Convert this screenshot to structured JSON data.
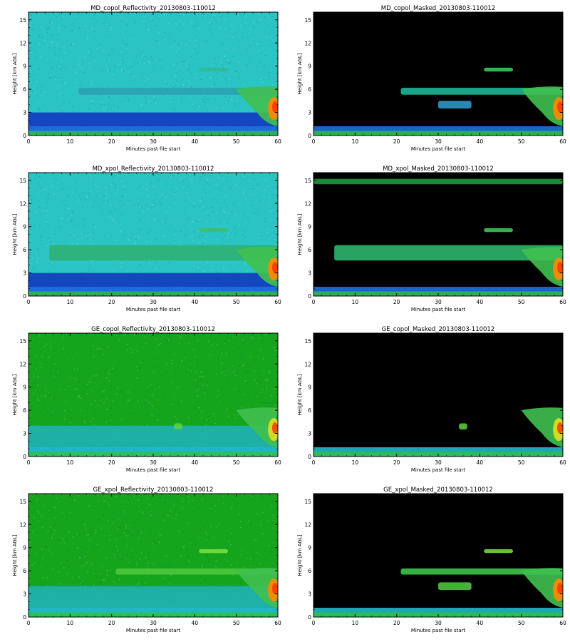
{
  "chart_data": [
    {
      "type": "heatmap",
      "title": "MD_copol_Reflectivity_20130803-110012",
      "xlabel": "Minutes past file start",
      "ylabel": "Height [km AGL]",
      "xlim": [
        0,
        60
      ],
      "ylim": [
        0,
        16
      ],
      "xticks": [
        "0",
        "10",
        "20",
        "30",
        "40",
        "50",
        "60"
      ],
      "yticks": [
        "0",
        "3",
        "6",
        "9",
        "12",
        "15"
      ],
      "masked": false,
      "background": "#2bc4c4",
      "lower": "#1e6fe0",
      "core": "#ff8a00",
      "bands": [
        {
          "x": [
            12,
            60
          ],
          "y": [
            5.3,
            6.2
          ],
          "color": "#2aa0b0"
        },
        {
          "x": [
            41,
            48
          ],
          "y": [
            8.3,
            8.8
          ],
          "color": "#30b890"
        },
        {
          "x": [
            0,
            60
          ],
          "y": [
            0,
            3
          ],
          "color": "#1030c0"
        }
      ]
    },
    {
      "type": "heatmap",
      "title": "MD_copol_Masked_20130803-110012",
      "xlabel": "Minutes past file start",
      "ylabel": "Height [km AGL]",
      "xlim": [
        0,
        60
      ],
      "ylim": [
        0,
        16
      ],
      "xticks": [
        "0",
        "10",
        "20",
        "30",
        "40",
        "50",
        "60"
      ],
      "yticks": [
        "0",
        "3",
        "6",
        "9",
        "12",
        "15"
      ],
      "masked": true,
      "background": "#000000",
      "lower": "#1e6fe0",
      "core": "#ff8a00",
      "bands": [
        {
          "x": [
            21,
            60
          ],
          "y": [
            5.3,
            6.2
          ],
          "color": "#20c0a0"
        },
        {
          "x": [
            41,
            48
          ],
          "y": [
            8.3,
            8.8
          ],
          "color": "#40d060"
        },
        {
          "x": [
            30,
            38
          ],
          "y": [
            3.5,
            4.5
          ],
          "color": "#30a0d0"
        }
      ]
    },
    {
      "type": "heatmap",
      "title": "MD_xpol_Reflectivity_20130803-110012",
      "xlabel": "Minutes past file start",
      "ylabel": "Height [km AGL]",
      "xlim": [
        0,
        60
      ],
      "ylim": [
        0,
        16
      ],
      "xticks": [
        "0",
        "10",
        "20",
        "30",
        "40",
        "50",
        "60"
      ],
      "yticks": [
        "0",
        "3",
        "6",
        "9",
        "12",
        "15"
      ],
      "masked": false,
      "background": "#2bc4c4",
      "lower": "#1e6fe0",
      "core": "#ff8a00",
      "bands": [
        {
          "x": [
            5,
            60
          ],
          "y": [
            4.6,
            6.6
          ],
          "color": "#30b070"
        },
        {
          "x": [
            41,
            48
          ],
          "y": [
            8.3,
            8.8
          ],
          "color": "#40c060"
        },
        {
          "x": [
            0,
            60
          ],
          "y": [
            0,
            3
          ],
          "color": "#1030c0"
        }
      ]
    },
    {
      "type": "heatmap",
      "title": "MD_xpol_Masked_20130803-110012",
      "xlabel": "Minutes past file start",
      "ylabel": "Height [km AGL]",
      "xlim": [
        0,
        60
      ],
      "ylim": [
        0,
        16
      ],
      "xticks": [
        "0",
        "10",
        "20",
        "30",
        "40",
        "50",
        "60"
      ],
      "yticks": [
        "0",
        "3",
        "6",
        "9",
        "12",
        "15"
      ],
      "masked": true,
      "background": "#000000",
      "lower": "#1e6fe0",
      "core": "#ff8a00",
      "bands": [
        {
          "x": [
            5,
            60
          ],
          "y": [
            4.6,
            6.6
          ],
          "color": "#30c070"
        },
        {
          "x": [
            41,
            48
          ],
          "y": [
            8.3,
            8.8
          ],
          "color": "#40d060"
        },
        {
          "x": [
            0,
            60
          ],
          "y": [
            14.5,
            15.2
          ],
          "color": "#20a040"
        }
      ]
    },
    {
      "type": "heatmap",
      "title": "GE_copol_Reflectivity_20130803-110012",
      "xlabel": "Minutes past file start",
      "ylabel": "Height [km AGL]",
      "xlim": [
        0,
        60
      ],
      "ylim": [
        0,
        16
      ],
      "xticks": [
        "0",
        "10",
        "20",
        "30",
        "40",
        "50",
        "60"
      ],
      "yticks": [
        "0",
        "3",
        "6",
        "9",
        "12",
        "15"
      ],
      "masked": false,
      "background": "#15a51d",
      "lower": "#20b8c8",
      "core": "#e0e020",
      "bands": [
        {
          "x": [
            0,
            60
          ],
          "y": [
            0,
            4
          ],
          "color": "#20b0c0"
        },
        {
          "x": [
            35,
            37
          ],
          "y": [
            3.5,
            4.3
          ],
          "color": "#60d040"
        }
      ]
    },
    {
      "type": "heatmap",
      "title": "GE_copol_Masked_20130803-110012",
      "xlabel": "Minutes past file start",
      "ylabel": "Height [km AGL]",
      "xlim": [
        0,
        60
      ],
      "ylim": [
        0,
        16
      ],
      "xticks": [
        "0",
        "10",
        "20",
        "30",
        "40",
        "50",
        "60"
      ],
      "yticks": [
        "0",
        "3",
        "6",
        "9",
        "12",
        "15"
      ],
      "masked": true,
      "background": "#000000",
      "lower": "#20b8c8",
      "core": "#e0e020",
      "bands": [
        {
          "x": [
            35,
            37
          ],
          "y": [
            3.5,
            4.3
          ],
          "color": "#60d040"
        }
      ]
    },
    {
      "type": "heatmap",
      "title": "GE_xpol_Reflectivity_20130803-110012",
      "xlabel": "Minutes past file start",
      "ylabel": "Height [km AGL]",
      "xlim": [
        0,
        60
      ],
      "ylim": [
        0,
        16
      ],
      "xticks": [
        "0",
        "10",
        "20",
        "30",
        "40",
        "50",
        "60"
      ],
      "yticks": [
        "0",
        "3",
        "6",
        "9",
        "12",
        "15"
      ],
      "masked": false,
      "background": "#15a51d",
      "lower": "#20b8c8",
      "core": "#ff8a00",
      "bands": [
        {
          "x": [
            0,
            60
          ],
          "y": [
            0,
            4
          ],
          "color": "#20b0c0"
        },
        {
          "x": [
            21,
            60
          ],
          "y": [
            5.5,
            6.3
          ],
          "color": "#50c840"
        },
        {
          "x": [
            41,
            48
          ],
          "y": [
            8.3,
            8.8
          ],
          "color": "#80e040"
        }
      ]
    },
    {
      "type": "heatmap",
      "title": "GE_xpol_Masked_20130803-110012",
      "xlabel": "Minutes past file start",
      "ylabel": "Height [km AGL]",
      "xlim": [
        0,
        60
      ],
      "ylim": [
        0,
        16
      ],
      "xticks": [
        "0",
        "10",
        "20",
        "30",
        "40",
        "50",
        "60"
      ],
      "yticks": [
        "0",
        "3",
        "6",
        "9",
        "12",
        "15"
      ],
      "masked": true,
      "background": "#000000",
      "lower": "#20b8c8",
      "core": "#ff8a00",
      "bands": [
        {
          "x": [
            21,
            60
          ],
          "y": [
            5.5,
            6.3
          ],
          "color": "#40d050"
        },
        {
          "x": [
            41,
            48
          ],
          "y": [
            8.3,
            8.8
          ],
          "color": "#80e040"
        },
        {
          "x": [
            30,
            38
          ],
          "y": [
            3.5,
            4.5
          ],
          "color": "#50d040"
        }
      ]
    }
  ]
}
